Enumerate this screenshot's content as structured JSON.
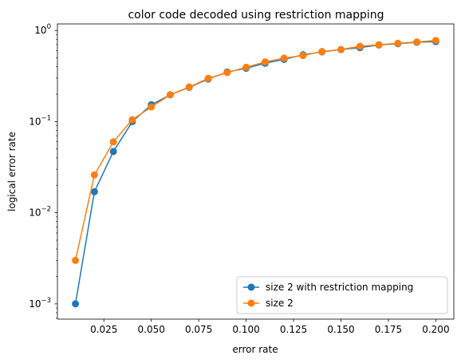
{
  "chart_data": {
    "type": "line",
    "title": "color code decoded using restriction mapping",
    "xlabel": "error rate",
    "ylabel": "logical error rate",
    "yscale": "log",
    "xlim": [
      0.0005,
      0.2095
    ],
    "ylim": [
      0.00068,
      1.18
    ],
    "x_ticks": [
      0.025,
      0.05,
      0.075,
      0.1,
      0.125,
      0.15,
      0.175,
      0.2
    ],
    "x_tick_labels": [
      "0.025",
      "0.050",
      "0.075",
      "0.100",
      "0.125",
      "0.150",
      "0.175",
      "0.200"
    ],
    "y_ticks": [
      0.001,
      0.01,
      0.1,
      1
    ],
    "y_tick_bases": [
      "10",
      "10",
      "10",
      "10"
    ],
    "y_tick_exponents": [
      "−3",
      "−2",
      "−1",
      "0"
    ],
    "grid": false,
    "legend_position": "lower right",
    "x": [
      0.01,
      0.02,
      0.03,
      0.04,
      0.05,
      0.06,
      0.07,
      0.08,
      0.09,
      0.1,
      0.11,
      0.12,
      0.13,
      0.14,
      0.15,
      0.16,
      0.17,
      0.18,
      0.19,
      0.2
    ],
    "series": [
      {
        "name": "size 2 with restriction mapping",
        "color": "#1f77b4",
        "values": [
          0.001,
          0.017,
          0.047,
          0.1,
          0.153,
          0.197,
          0.238,
          0.293,
          0.35,
          0.385,
          0.437,
          0.482,
          0.541,
          0.582,
          0.617,
          0.649,
          0.693,
          0.716,
          0.742,
          0.755
        ]
      },
      {
        "name": "size 2",
        "color": "#ff7f0e",
        "values": [
          0.003,
          0.026,
          0.06,
          0.105,
          0.145,
          0.197,
          0.24,
          0.298,
          0.345,
          0.395,
          0.452,
          0.497,
          0.532,
          0.587,
          0.617,
          0.671,
          0.697,
          0.723,
          0.747,
          0.777
        ]
      }
    ]
  }
}
